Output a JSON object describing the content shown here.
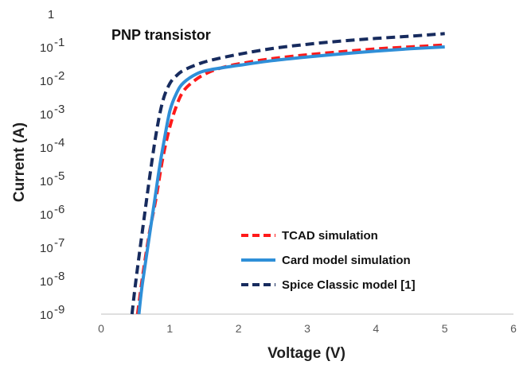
{
  "chart_data": {
    "type": "line",
    "title": "PNP transistor",
    "xlabel": "Voltage (V)",
    "ylabel": "Current (A)",
    "x_scale": "linear",
    "y_scale": "log",
    "xlim": [
      0,
      6
    ],
    "ylim": [
      1e-09,
      1
    ],
    "x_ticks": [
      "0",
      "1",
      "2",
      "3",
      "4",
      "5",
      "6"
    ],
    "y_ticks": [
      {
        "value": 1,
        "base": "1",
        "exp": ""
      },
      {
        "value": 0.1,
        "base": "10",
        "exp": "-1"
      },
      {
        "value": 0.01,
        "base": "10",
        "exp": "-2"
      },
      {
        "value": 0.001,
        "base": "10",
        "exp": "-3"
      },
      {
        "value": 0.0001,
        "base": "10",
        "exp": "-4"
      },
      {
        "value": 1e-05,
        "base": "10",
        "exp": "-5"
      },
      {
        "value": 1e-06,
        "base": "10",
        "exp": "-6"
      },
      {
        "value": 1e-07,
        "base": "10",
        "exp": "-7"
      },
      {
        "value": 1e-08,
        "base": "10",
        "exp": "-8"
      },
      {
        "value": 1e-09,
        "base": "10",
        "exp": "-9"
      }
    ],
    "grid": false,
    "legend_position": "bottom-right (inside plot)",
    "series": [
      {
        "name": "TCAD simulation",
        "color": "#ff1a1a",
        "dash": "dashed",
        "x": [
          0.53,
          0.6,
          0.7,
          0.8,
          0.9,
          1.0,
          1.1,
          1.2,
          1.35,
          1.5,
          1.7,
          2.0,
          2.5,
          3.0,
          3.5,
          4.0,
          4.5,
          5.0
        ],
        "y": [
          1e-09,
          1.2e-08,
          2.5e-07,
          3e-06,
          5e-05,
          0.0004,
          0.0018,
          0.0048,
          0.0095,
          0.015,
          0.022,
          0.031,
          0.045,
          0.058,
          0.072,
          0.087,
          0.1,
          0.115
        ]
      },
      {
        "name": "Card model simulation",
        "color": "#2f8fd8",
        "dash": "solid",
        "x": [
          0.55,
          0.6,
          0.7,
          0.8,
          0.85,
          0.9,
          1.0,
          1.1,
          1.2,
          1.4,
          1.6,
          2.0,
          2.5,
          3.0,
          3.5,
          4.0,
          4.5,
          5.0
        ],
        "y": [
          1e-09,
          8e-09,
          2e-07,
          5e-06,
          2.5e-05,
          0.0001,
          0.0012,
          0.0042,
          0.0085,
          0.016,
          0.021,
          0.028,
          0.039,
          0.05,
          0.062,
          0.075,
          0.088,
          0.1
        ]
      },
      {
        "name": "Spice Classic model [1]",
        "color": "#172b5e",
        "dash": "dashed",
        "x": [
          0.45,
          0.5,
          0.6,
          0.7,
          0.8,
          0.9,
          1.0,
          1.1,
          1.2,
          1.4,
          1.6,
          2.0,
          2.5,
          3.0,
          3.5,
          4.0,
          4.5,
          5.0
        ],
        "y": [
          1e-09,
          8e-09,
          3e-07,
          1e-05,
          0.00025,
          0.0025,
          0.008,
          0.014,
          0.02,
          0.03,
          0.04,
          0.06,
          0.09,
          0.12,
          0.15,
          0.18,
          0.21,
          0.25
        ]
      }
    ]
  }
}
